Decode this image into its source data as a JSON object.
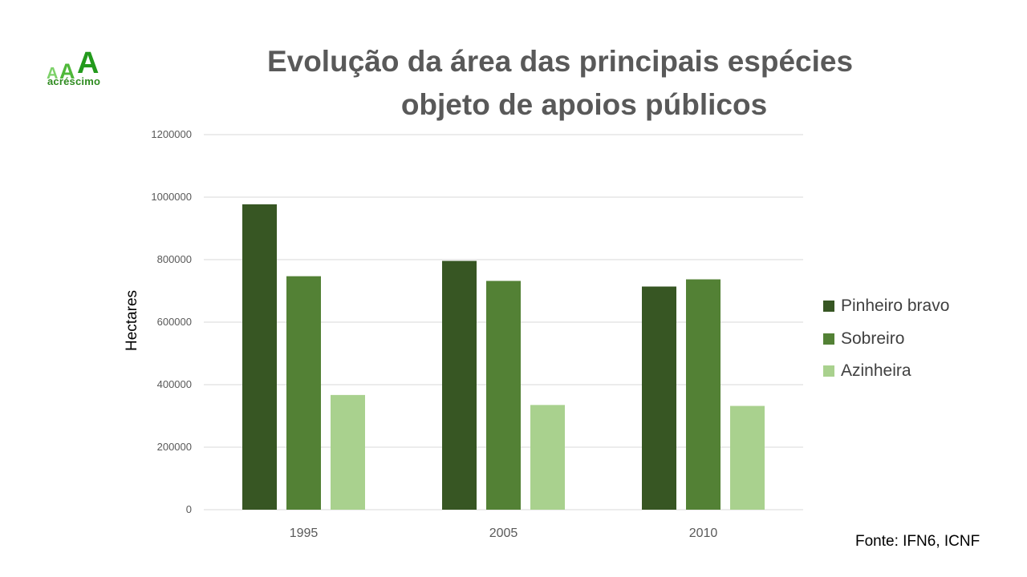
{
  "logo": {
    "text": "acréscimo",
    "letter": "A"
  },
  "title_line1": "Evolução da área das principais espécies",
  "title_line2": "objeto de apoios públicos",
  "source": "Fonte: IFN6, ICNF",
  "chart_data": {
    "type": "bar",
    "title": "Evolução da área das principais espécies objeto de apoios públicos",
    "xlabel": "",
    "ylabel": "Hectares",
    "categories": [
      "1995",
      "2005",
      "2010"
    ],
    "ylim": [
      0,
      1200000
    ],
    "yticks": [
      "0",
      "200000",
      "400000",
      "600000",
      "800000",
      "1000000",
      "1200000"
    ],
    "grid": true,
    "legend_position": "right",
    "series": [
      {
        "name": "Pinheiro bravo",
        "color": "#375623",
        "values": [
          977000,
          796000,
          714000
        ]
      },
      {
        "name": "Sobreiro",
        "color": "#538135",
        "values": [
          747000,
          732000,
          737000
        ]
      },
      {
        "name": "Azinheira",
        "color": "#a9d18e",
        "values": [
          367000,
          335000,
          332000
        ]
      }
    ]
  }
}
